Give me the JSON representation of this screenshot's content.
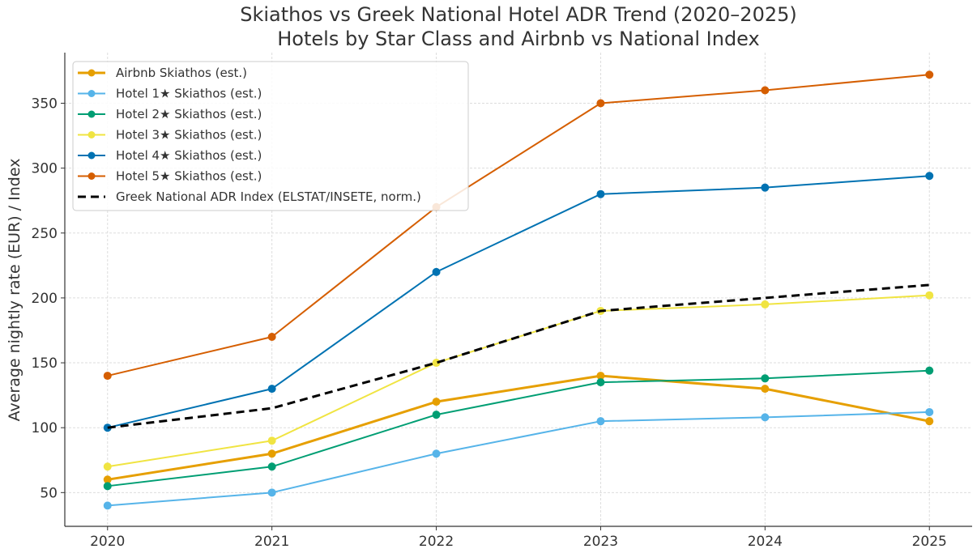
{
  "chart_data": {
    "type": "line",
    "title": [
      "Skiathos vs Greek National Hotel ADR Trend (2020–2025)",
      "Hotels by Star Class and Airbnb vs National Index"
    ],
    "xlabel": "",
    "ylabel": "Average nightly rate (EUR) / Index",
    "x": [
      2020,
      2021,
      2022,
      2023,
      2024,
      2025
    ],
    "x_tick_labels": [
      "2020",
      "2021",
      "2022",
      "2023",
      "2024",
      "2025"
    ],
    "y_ticks": [
      50,
      100,
      150,
      200,
      250,
      300,
      350
    ],
    "ylim": [
      24,
      389
    ],
    "xlim": [
      2019.74,
      2025.26
    ],
    "grid": true,
    "legend_position": "top-left",
    "series": [
      {
        "name": "Airbnb Skiathos (est.)",
        "color": "#E69F00",
        "style": "solid",
        "width": 3,
        "values": [
          60,
          80,
          120,
          140,
          130,
          105
        ]
      },
      {
        "name": "Hotel 1★ Skiathos (est.)",
        "color": "#56B4E9",
        "style": "solid",
        "width": 2,
        "values": [
          40,
          50,
          80,
          105,
          108,
          112
        ]
      },
      {
        "name": "Hotel 2★ Skiathos (est.)",
        "color": "#009E73",
        "style": "solid",
        "width": 2,
        "values": [
          55,
          70,
          110,
          135,
          138,
          144
        ]
      },
      {
        "name": "Hotel 3★ Skiathos (est.)",
        "color": "#F0E442",
        "style": "solid",
        "width": 2,
        "values": [
          70,
          90,
          150,
          190,
          195,
          202
        ]
      },
      {
        "name": "Hotel 4★ Skiathos (est.)",
        "color": "#0072B2",
        "style": "solid",
        "width": 2,
        "values": [
          100,
          130,
          220,
          280,
          285,
          294
        ]
      },
      {
        "name": "Hotel 5★ Skiathos (est.)",
        "color": "#D55E00",
        "style": "solid",
        "width": 2,
        "values": [
          140,
          170,
          270,
          350,
          360,
          372
        ]
      },
      {
        "name": "Greek National ADR Index (ELSTAT/INSETE, norm.)",
        "color": "#000000",
        "style": "dashed",
        "width": 3,
        "values": [
          100,
          115,
          150,
          190,
          200,
          210
        ]
      }
    ]
  }
}
